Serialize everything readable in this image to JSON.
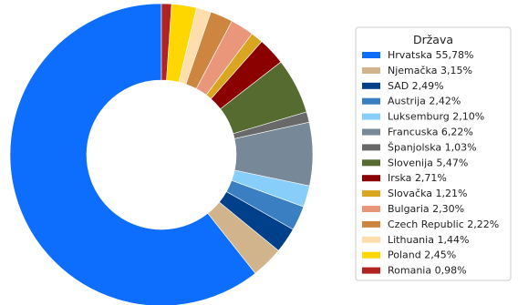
{
  "chart_data": {
    "type": "pie",
    "hole": true,
    "start_angle_deg": 90,
    "direction": "counterclockwise",
    "legend": {
      "title": "Država",
      "placement": "right"
    },
    "series": [
      {
        "name": "Hrvatska",
        "value": 55.78,
        "label": "Hrvatska 55,78%",
        "color": "#0d6efd"
      },
      {
        "name": "Njemačka",
        "value": 3.15,
        "label": "Njemačka 3,15%",
        "color": "#d2b48c"
      },
      {
        "name": "SAD",
        "value": 2.49,
        "label": "SAD 2,49%",
        "color": "#003f8a"
      },
      {
        "name": "Austrija",
        "value": 2.42,
        "label": "Austrija 2,42%",
        "color": "#3a7fc1"
      },
      {
        "name": "Luksemburg",
        "value": 2.1,
        "label": "Luksemburg 2,10%",
        "color": "#87cefa"
      },
      {
        "name": "Francuska",
        "value": 6.22,
        "label": "Francuska 6,22%",
        "color": "#778899"
      },
      {
        "name": "Španjolska",
        "value": 1.03,
        "label": "Španjolska 1,03%",
        "color": "#696969"
      },
      {
        "name": "Slovenija",
        "value": 5.47,
        "label": "Slovenija 5,47%",
        "color": "#556b2f"
      },
      {
        "name": "Irska",
        "value": 2.71,
        "label": "Irska 2,71%",
        "color": "#8b0000"
      },
      {
        "name": "Slovačka",
        "value": 1.21,
        "label": "Slovačka 1,21%",
        "color": "#daa520"
      },
      {
        "name": "Bulgaria",
        "value": 2.3,
        "label": "Bulgaria 2,30%",
        "color": "#e9967a"
      },
      {
        "name": "Czech Republic",
        "value": 2.22,
        "label": "Czech Republic 2,22%",
        "color": "#cd853f"
      },
      {
        "name": "Lithuania",
        "value": 1.44,
        "label": "Lithuania 1,44%",
        "color": "#ffdead"
      },
      {
        "name": "Poland",
        "value": 2.45,
        "label": "Poland 2,45%",
        "color": "#ffd700"
      },
      {
        "name": "Romania",
        "value": 0.98,
        "label": "Romania 0,98%",
        "color": "#b22222"
      }
    ]
  }
}
